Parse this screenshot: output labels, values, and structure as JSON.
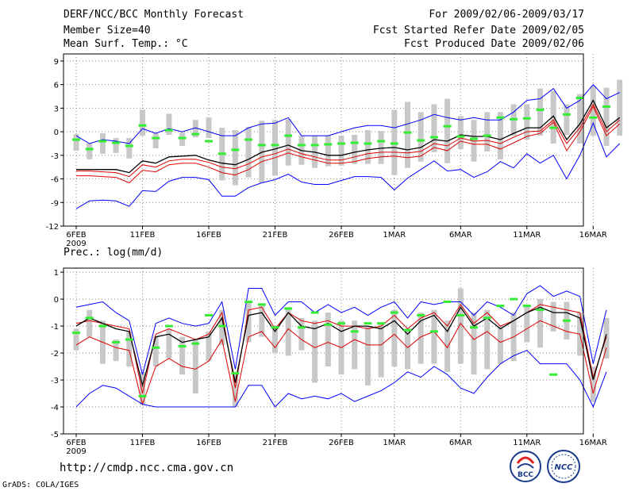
{
  "header": {
    "title": "DERF/NCC/BCC Monthly Forecast",
    "member_size": "Member Size=40",
    "variable": "Mean Surf. Temp.: °C",
    "period": "For 2009/02/06-2009/03/17",
    "start_date": "Fcst Started Refer Date 2009/02/05",
    "produced_date": "Fcst Produced Date 2009/02/06"
  },
  "panel2_label": "Prec.: log(mm/d)",
  "footer": {
    "url": "http://cmdp.ncc.cma.gov.cn",
    "credit": "GrADS: COLA/IGES"
  },
  "logos": {
    "bcc": "BCC",
    "ncc": "NCC"
  },
  "colors": {
    "max_min": "#0000ff",
    "quartile": "#dd0000",
    "mean": "#000000",
    "member_box": "#c8c8c8",
    "obs": "#33ee33",
    "grid": "#888888"
  },
  "chart_data": [
    {
      "type": "line",
      "title": "Mean Surf. Temp.: °C",
      "x_tick_labels": [
        "6FEB",
        "11FEB",
        "16FEB",
        "21FEB",
        "26FEB",
        "1MAR",
        "6MAR",
        "11MAR",
        "16MAR"
      ],
      "x_year_label": "2009",
      "x_tick_days": [
        0,
        5,
        10,
        15,
        20,
        24,
        29,
        34,
        39
      ],
      "n_days": 40,
      "yticks": [
        -12,
        -9,
        -6,
        -3,
        0,
        3,
        6,
        9
      ],
      "ylim": [
        -12,
        9.9
      ],
      "series": [
        {
          "name": "max",
          "values": [
            -0.5,
            -1.5,
            -1,
            -1.2,
            -1.5,
            0.4,
            -0.2,
            0.4,
            0,
            0.5,
            0,
            -0.5,
            -0.5,
            0.5,
            1,
            1.1,
            1.8,
            -0.5,
            -0.5,
            -0.5,
            0,
            0.5,
            0.8,
            0.8,
            0.5,
            1,
            1.5,
            2.2,
            1.8,
            1.5,
            1.8,
            1.5,
            1.5,
            2.5,
            4,
            4.2,
            5.5,
            3,
            4,
            6,
            4.2,
            5
          ]
        },
        {
          "name": "upper_quartile",
          "values": [
            -5,
            -5,
            -5.1,
            -5.2,
            -5.7,
            -4.2,
            -4.5,
            -3.7,
            -3.5,
            -3.5,
            -3.9,
            -4.5,
            -4.7,
            -4.1,
            -3.2,
            -2.8,
            -2.2,
            -2.8,
            -3.2,
            -3.6,
            -3.6,
            -3.2,
            -2.8,
            -2.6,
            -2.6,
            -2.7,
            -2.5,
            -1.5,
            -1.8,
            -0.8,
            -1.2,
            -1.1,
            -1.5,
            -0.7,
            0,
            0.1,
            1.5,
            -1.5,
            0.5,
            3.5,
            0,
            1.5
          ]
        },
        {
          "name": "mean",
          "values": [
            -4.8,
            -4.8,
            -4.8,
            -4.8,
            -5.2,
            -3.7,
            -4,
            -3.2,
            -3.1,
            -3,
            -3.6,
            -4,
            -4.2,
            -3.5,
            -2.6,
            -2.2,
            -1.7,
            -2.4,
            -2.6,
            -3,
            -3,
            -2.6,
            -2.3,
            -2.1,
            -2,
            -2.3,
            -2,
            -1,
            -1.2,
            -0.4,
            -0.6,
            -0.6,
            -1,
            -0.2,
            0.5,
            0.5,
            2,
            -1,
            1,
            4,
            0.5,
            1.8
          ]
        },
        {
          "name": "lower_quartile",
          "values": [
            -5.6,
            -5.6,
            -5.7,
            -5.8,
            -6.5,
            -4.9,
            -5.1,
            -4.2,
            -4,
            -4,
            -4.5,
            -5.2,
            -5.5,
            -4.8,
            -3.8,
            -3.3,
            -2.7,
            -3.2,
            -3.6,
            -4,
            -4,
            -3.8,
            -3.4,
            -3.2,
            -3.1,
            -3.3,
            -3.1,
            -2,
            -2.4,
            -1.2,
            -1.6,
            -1.6,
            -2.2,
            -1.4,
            -0.6,
            -0.2,
            1.2,
            -2.4,
            0,
            3.2,
            -0.5,
            1
          ]
        },
        {
          "name": "min",
          "values": [
            -9.8,
            -8.8,
            -8.7,
            -8.8,
            -9.5,
            -7.5,
            -7.6,
            -6.3,
            -5.8,
            -5.8,
            -6.1,
            -8.2,
            -8.2,
            -7.1,
            -6.5,
            -6.1,
            -5.4,
            -6.4,
            -6.7,
            -6.7,
            -6.2,
            -5.7,
            -5.7,
            -5.8,
            -7.4,
            -5.9,
            -4.8,
            -3.7,
            -5,
            -4.8,
            -5.8,
            -5.1,
            -3.8,
            -4.6,
            -2.8,
            -4,
            -3,
            -6,
            -3,
            1.1,
            -3.2,
            -1.5
          ]
        },
        {
          "name": "box_top",
          "values": [
            -0.3,
            -1.5,
            -0.2,
            -0.8,
            -0.8,
            2.8,
            -0.2,
            2.3,
            -0.1,
            1.5,
            1.8,
            0.5,
            0.2,
            0.6,
            1.4,
            1.5,
            1.6,
            -0.5,
            -0.5,
            -0.5,
            -0.5,
            -0.4,
            0.2,
            0.1,
            2.8,
            3.8,
            2.5,
            3.5,
            4.2,
            2,
            1.5,
            2.5,
            2.5,
            3.5,
            3.5,
            5.5,
            5.2,
            3.5,
            4.8,
            5.8,
            5.6,
            6.6
          ]
        },
        {
          "name": "box_bottom",
          "values": [
            -2.4,
            -3.5,
            -2.8,
            -2.7,
            -3.4,
            -0.5,
            -2.1,
            -0.4,
            -1.8,
            -0.7,
            -0.8,
            -6.2,
            -6.8,
            -5.8,
            -6.5,
            -5.6,
            -4.3,
            -4.2,
            -4.6,
            -4.4,
            -4.3,
            -4.1,
            -4.1,
            -4.1,
            -5.5,
            -4.6,
            -3.8,
            -2.6,
            -4,
            -2.2,
            -3.8,
            -2.5,
            -3.5,
            -0.5,
            -1,
            -0.5,
            -1.5,
            -0.4,
            -1.5,
            -0.5,
            -1.8,
            -0.5
          ]
        },
        {
          "name": "observed",
          "values": [
            -1,
            -2.2,
            -1.2,
            -1.4,
            -1.8,
            0.8,
            -0.8,
            0.2,
            -0.8,
            -0.3,
            -1.2,
            -2.8,
            -2.3,
            -1,
            -1.7,
            -1.7,
            -0.5,
            -1.7,
            -1.7,
            -1.6,
            -1.5,
            -1.4,
            -1.5,
            -1.2,
            -1.5,
            -0.1,
            -1.1,
            -0.7,
            0.7,
            -0.6,
            -0.9,
            -0.5,
            1.8,
            1.6,
            1.7,
            2.8,
            0.5,
            2.2,
            4.3,
            1.8,
            3.2,
            null
          ]
        }
      ]
    },
    {
      "type": "line",
      "title": "Prec.: log(mm/d)",
      "x_tick_labels": [
        "6FEB",
        "11FEB",
        "16FEB",
        "21FEB",
        "26FEB",
        "1MAR",
        "6MAR",
        "11MAR",
        "16MAR"
      ],
      "x_year_label": "2009",
      "x_tick_days": [
        0,
        5,
        10,
        15,
        20,
        24,
        29,
        34,
        39
      ],
      "n_days": 40,
      "yticks": [
        -5,
        -4,
        -3,
        -2,
        -1,
        0,
        1
      ],
      "ylim": [
        -5,
        1.15
      ],
      "series": [
        {
          "name": "max",
          "values": [
            -0.3,
            -0.2,
            -0.1,
            -0.5,
            -0.8,
            -2.8,
            -0.9,
            -0.7,
            -0.9,
            -1,
            -0.9,
            -0.1,
            -2.6,
            0.4,
            0.4,
            -0.6,
            -0.1,
            -0.1,
            -0.5,
            -0.2,
            -0.5,
            -0.3,
            -0.6,
            -0.3,
            -0.1,
            -0.7,
            -0.1,
            -0.2,
            -0.1,
            -0.1,
            -0.6,
            -0.1,
            -0.3,
            -0.6,
            0.2,
            0.5,
            0.1,
            0.3,
            0.1,
            -2.4,
            -0.4
          ]
        },
        {
          "name": "upper_quartile",
          "values": [
            -0.9,
            -0.8,
            -0.9,
            -1,
            -1.1,
            -3.5,
            -1.3,
            -1.1,
            -1.3,
            -1.5,
            -1.3,
            -0.5,
            -3.3,
            -0.4,
            -0.3,
            -1.1,
            -0.5,
            -0.8,
            -0.9,
            -0.8,
            -1,
            -1,
            -1.1,
            -1,
            -0.6,
            -1.1,
            -0.7,
            -0.5,
            -1,
            -0.2,
            -0.9,
            -0.5,
            -1,
            -0.8,
            -0.5,
            -0.2,
            -0.3,
            -0.4,
            -0.5,
            -2.9,
            -1.4
          ]
        },
        {
          "name": "mean",
          "values": [
            -1,
            -0.7,
            -0.9,
            -1.1,
            -1.2,
            -3.2,
            -1.4,
            -1.3,
            -1.6,
            -1.5,
            -1.4,
            -0.7,
            -3.1,
            -0.6,
            -0.5,
            -1.2,
            -0.5,
            -1,
            -1.1,
            -0.9,
            -1.2,
            -1,
            -1,
            -1.1,
            -0.8,
            -1.3,
            -0.8,
            -0.6,
            -1.2,
            -0.3,
            -1,
            -0.7,
            -1.1,
            -0.8,
            -0.5,
            -0.3,
            -0.5,
            -0.5,
            -0.7,
            -3,
            -1.3
          ]
        },
        {
          "name": "lower_quartile",
          "values": [
            -1.7,
            -1.4,
            -1.6,
            -1.8,
            -1.9,
            -3.9,
            -2.5,
            -2.2,
            -2.5,
            -2.6,
            -2.3,
            -1.5,
            -3.8,
            -1.4,
            -1.2,
            -1.8,
            -1.1,
            -1.5,
            -1.8,
            -1.6,
            -1.8,
            -1.5,
            -1.7,
            -1.7,
            -1.3,
            -1.8,
            -1.4,
            -1.2,
            -1.8,
            -0.9,
            -1.5,
            -1.2,
            -1.6,
            -1.4,
            -1.1,
            -0.8,
            -1,
            -1.2,
            -1.3,
            -3.5,
            -1.8
          ]
        },
        {
          "name": "min",
          "values": [
            -4,
            -3.5,
            -3.2,
            -3.3,
            -3.6,
            -3.9,
            -4,
            -4,
            -4,
            -4,
            -4,
            -4,
            -4,
            -3.2,
            -3.2,
            -4,
            -3.5,
            -3.7,
            -3.6,
            -3.7,
            -3.5,
            -3.8,
            -3.6,
            -3.4,
            -3.1,
            -2.7,
            -2.9,
            -2.5,
            -2.8,
            -3.3,
            -3.5,
            -2.9,
            -2.4,
            -2.1,
            -1.9,
            -2.4,
            -2.4,
            -2.4,
            -3,
            -4,
            -2.7
          ]
        },
        {
          "name": "box_top",
          "values": [
            -1.1,
            -0.4,
            -0.8,
            -1.5,
            -1.2,
            -2.7,
            -1.4,
            -1.1,
            -1.4,
            -1.5,
            -1.2,
            -0.4,
            -2.8,
            -0.1,
            -0.2,
            -1,
            -0.3,
            -0.7,
            -0.8,
            -0.5,
            -0.8,
            -0.8,
            -1,
            -0.9,
            -0.4,
            -1.1,
            -0.5,
            -0.4,
            -0.8,
            0.4,
            -0.5,
            -0.4,
            -1,
            -0.5,
            -0.2,
            0,
            -0.1,
            -0.1,
            -0.5,
            -2.5,
            -0.7
          ]
        },
        {
          "name": "box_bottom",
          "values": [
            -1.9,
            -1.4,
            -2.4,
            -2.3,
            -2.5,
            -3.9,
            -2.5,
            -2.2,
            -2.8,
            -3.5,
            -2.3,
            -1.7,
            -4,
            -1.6,
            -1.4,
            -2,
            -2.1,
            -1.9,
            -3.1,
            -2.5,
            -2.8,
            -2.6,
            -3.2,
            -2.9,
            -2.5,
            -2.6,
            -2.4,
            -2.4,
            -2.7,
            -2.4,
            -2.8,
            -2.6,
            -2.4,
            -2.3,
            -1.6,
            -1.8,
            -1.2,
            -1.5,
            -2.1,
            -3.8,
            -2.2
          ]
        },
        {
          "name": "observed",
          "values": [
            -1.25,
            -0.7,
            -1,
            -1.6,
            -1.5,
            -3.6,
            -1.8,
            -1,
            -1.75,
            -1.65,
            -0.6,
            -1,
            -2.75,
            -0.1,
            -0.2,
            -1.05,
            -0.35,
            -1.05,
            -0.5,
            -0.95,
            -0.9,
            -1.2,
            -0.9,
            -0.9,
            -0.5,
            -1.15,
            -0.6,
            -1.2,
            -0.1,
            -0.6,
            -1.05,
            -0.7,
            -0.25,
            0,
            -0.25,
            -0.4,
            -2.8,
            -0.8,
            null,
            null,
            null
          ]
        }
      ]
    }
  ]
}
